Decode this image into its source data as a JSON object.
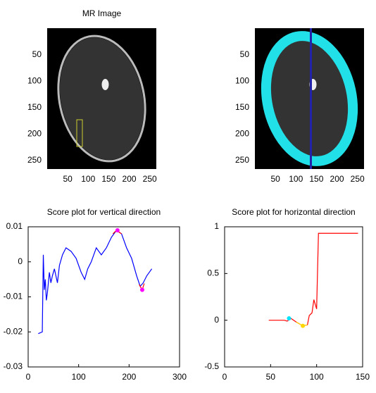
{
  "chart_data": [
    {
      "type": "image",
      "title": "MR Image",
      "xlim": [
        0,
        266
      ],
      "ylim": [
        0,
        266
      ],
      "xticks": [
        50,
        100,
        150,
        200,
        250
      ],
      "yticks": [
        50,
        100,
        150,
        200,
        250
      ]
    },
    {
      "type": "image",
      "xlim": [
        0,
        266
      ],
      "ylim": [
        0,
        266
      ],
      "xticks": [
        50,
        100,
        150,
        200,
        250
      ],
      "yticks": [
        50,
        100,
        150,
        200,
        250
      ]
    },
    {
      "type": "line",
      "title": "Score plot for vertical direction",
      "xlim": [
        0,
        300
      ],
      "ylim": [
        -0.03,
        0.01
      ],
      "xticks": [
        0,
        100,
        200,
        300
      ],
      "yticks": [
        -0.03,
        -0.02,
        -0.01,
        0,
        0.01
      ],
      "series": [
        {
          "color": "#0000ff",
          "x": [
            20,
            28,
            30,
            32,
            34,
            36,
            38,
            40,
            42,
            45,
            48,
            52,
            55,
            58,
            62,
            68,
            75,
            85,
            95,
            105,
            112,
            118,
            125,
            135,
            145,
            155,
            165,
            175,
            185,
            195,
            205,
            215,
            222,
            228,
            235,
            245
          ],
          "values": [
            -0.0205,
            -0.02,
            0.002,
            -0.008,
            -0.005,
            -0.011,
            -0.009,
            -0.006,
            -0.003,
            -0.006,
            -0.004,
            -0.002,
            -0.004,
            -0.006,
            -0.001,
            0.002,
            0.004,
            0.003,
            0.001,
            -0.003,
            -0.005,
            -0.002,
            0.0,
            0.004,
            0.002,
            0.004,
            0.007,
            0.009,
            0.008,
            0.004,
            0.001,
            -0.004,
            -0.007,
            -0.006,
            -0.004,
            -0.002
          ]
        },
        {
          "color": "#ff0000",
          "x": [
            168,
            175,
            185
          ],
          "values": [
            0.008,
            0.009,
            0.008
          ]
        },
        {
          "color": "#ff0000",
          "x": [
            220,
            226,
            230
          ],
          "values": [
            -0.0065,
            -0.008,
            -0.0062
          ]
        },
        {
          "color": "#ff00ff",
          "style": "markers",
          "x": [
            177,
            226
          ],
          "values": [
            0.009,
            -0.008
          ]
        }
      ]
    },
    {
      "type": "line",
      "title": "Score plot for horizontal direction",
      "xlim": [
        0,
        150
      ],
      "ylim": [
        -0.5,
        1
      ],
      "xticks": [
        0,
        50,
        100,
        150
      ],
      "yticks": [
        -0.5,
        0,
        0.5,
        1
      ],
      "series": [
        {
          "color": "#ff0000",
          "x": [
            48,
            65,
            68,
            72,
            78,
            85,
            90,
            92,
            95,
            97,
            100,
            102,
            145
          ],
          "values": [
            0,
            0,
            -0.01,
            0.02,
            -0.02,
            -0.06,
            -0.05,
            0.05,
            0.08,
            0.22,
            0.12,
            0.93,
            0.93
          ]
        },
        {
          "color": "#ffd700",
          "x": [
            78,
            85,
            90
          ],
          "values": [
            -0.02,
            -0.06,
            -0.05
          ]
        },
        {
          "color": "#00e5ff",
          "style": "markers",
          "x": [
            70
          ],
          "values": [
            0.02
          ]
        },
        {
          "color": "#ffd700",
          "style": "markers",
          "x": [
            85
          ],
          "values": [
            -0.06
          ]
        }
      ]
    }
  ]
}
